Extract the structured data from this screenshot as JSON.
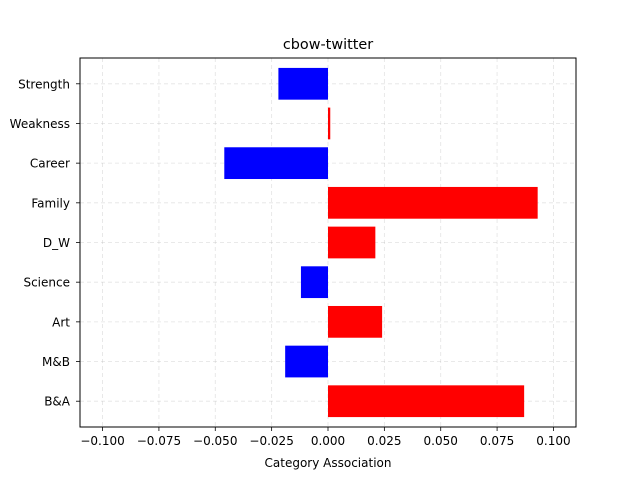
{
  "chart_data": {
    "type": "bar",
    "orientation": "horizontal",
    "title": "cbow-twitter",
    "xlabel": "Category Association",
    "ylabel": "",
    "categories": [
      "B&A",
      "M&B",
      "Art",
      "Science",
      "D_W",
      "Family",
      "Career",
      "Weakness",
      "Strength"
    ],
    "values": [
      0.087,
      -0.019,
      0.024,
      -0.012,
      0.021,
      0.093,
      -0.046,
      0.001,
      -0.022
    ],
    "xlim": [
      -0.11,
      0.11
    ],
    "xticks": [
      -0.1,
      -0.075,
      -0.05,
      -0.025,
      0.0,
      0.025,
      0.05,
      0.075,
      0.1
    ],
    "xtick_labels": [
      "−0.100",
      "−0.075",
      "−0.050",
      "−0.025",
      "0.000",
      "0.025",
      "0.050",
      "0.075",
      "0.100"
    ],
    "grid": true,
    "colors": {
      "positive": "#ff0000",
      "negative": "#0000ff"
    }
  }
}
